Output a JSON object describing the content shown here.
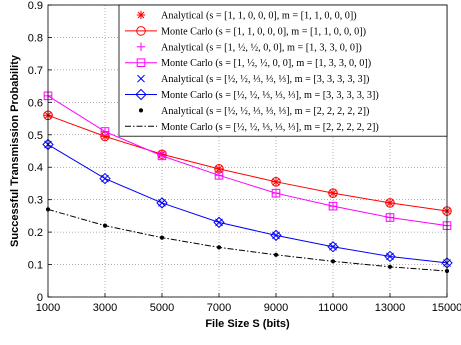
{
  "chart_data": {
    "type": "line",
    "xlabel": "File Size S (bits)",
    "ylabel": "Successful Transmission Probability",
    "x": [
      1000,
      3000,
      5000,
      7000,
      9000,
      11000,
      13000,
      15000
    ],
    "x_ticks": [
      "1000",
      "3000",
      "5000",
      "7000",
      "9000",
      "11000",
      "13000",
      "15000"
    ],
    "y_ticks": [
      "0",
      "0.1",
      "0.2",
      "0.3",
      "0.4",
      "0.5",
      "0.6",
      "0.7",
      "0.8",
      "0.9"
    ],
    "xlim": [
      1000,
      15000
    ],
    "ylim": [
      0,
      0.9
    ],
    "grid": true,
    "legend_position": "top-right",
    "series": [
      {
        "name": "Analytical (s = [1,1,0,0,0], m = [1,1,0,0,0])",
        "color": "#ff0000",
        "marker": "asterisk",
        "line": "none",
        "values": [
          0.56,
          0.495,
          0.44,
          0.395,
          0.355,
          0.32,
          0.29,
          0.265
        ]
      },
      {
        "name": "Monte Carlo (s = [1,1,0,0,0], m = [1,1,0,0,0])",
        "color": "#ff0000",
        "marker": "circle",
        "line": "solid",
        "values": [
          0.56,
          0.495,
          0.44,
          0.395,
          0.355,
          0.32,
          0.29,
          0.265
        ]
      },
      {
        "name": "Analytical (s = [1, 1/2, 1/2, 0, 0], m = [1,3,3,0,0])",
        "color": "#ff00ff",
        "marker": "plus",
        "line": "none",
        "values": [
          0.62,
          0.51,
          0.435,
          0.375,
          0.32,
          0.28,
          0.245,
          0.22
        ]
      },
      {
        "name": "Monte Carlo (s = [1, 1/2, 1/2, 0, 0], m = [1,3,3,0,0])",
        "color": "#ff00ff",
        "marker": "square",
        "line": "solid",
        "values": [
          0.62,
          0.51,
          0.435,
          0.375,
          0.32,
          0.28,
          0.245,
          0.22
        ]
      },
      {
        "name": "Analytical (s = [1/2, 1/2, 1/3, 1/3, 1/3], m = [3,3,3,3,3])",
        "color": "#0000ff",
        "marker": "x",
        "line": "none",
        "values": [
          0.47,
          0.365,
          0.29,
          0.23,
          0.19,
          0.155,
          0.125,
          0.105
        ]
      },
      {
        "name": "Monte Carlo (s = [1/2, 1/2, 1/3, 1/3, 1/3], m = [3,3,3,3,3])",
        "color": "#0000ff",
        "marker": "diamond",
        "line": "solid",
        "values": [
          0.47,
          0.365,
          0.29,
          0.23,
          0.19,
          0.155,
          0.125,
          0.105
        ]
      },
      {
        "name": "Analytical (s = [1/2, 1/2, 1/3, 1/3, 1/3], m = [2,2,2,2,2])",
        "color": "#000000",
        "marker": "dot",
        "line": "none",
        "values": [
          0.27,
          0.22,
          0.183,
          0.153,
          0.13,
          0.11,
          0.093,
          0.08
        ]
      },
      {
        "name": "Monte Carlo (s = [1/2, 1/2, 1/3, 1/3, 1/3], m = [2,2,2,2,2])",
        "color": "#000000",
        "marker": "none",
        "line": "dashdot",
        "values": [
          0.27,
          0.22,
          0.183,
          0.153,
          0.13,
          0.11,
          0.093,
          0.08
        ]
      }
    ],
    "legend": [
      {
        "label": "Analytical (s = [1, 1, 0, 0, 0], m = [1, 1, 0, 0, 0])"
      },
      {
        "label": "Monte Carlo (s = [1, 1, 0, 0, 0], m = [1, 1, 0, 0, 0])"
      },
      {
        "label": "Analytical (s = [1, ½, ½, 0, 0], m = [1, 3, 3, 0, 0])"
      },
      {
        "label": "Monte Carlo (s = [1, ½, ½, 0, 0], m = [1, 3, 3, 0, 0])"
      },
      {
        "label": "Analytical (s = [½, ½, ⅓, ⅓, ⅓], m = [3, 3, 3, 3, 3])"
      },
      {
        "label": "Monte Carlo (s = [½, ½, ⅓, ⅓, ⅓], m = [3, 3, 3, 3, 3])"
      },
      {
        "label": "Analytical (s = [½, ½, ⅓, ⅓, ⅓], m = [2, 2, 2, 2, 2])"
      },
      {
        "label": "Monte Carlo (s = [½, ½, ⅓, ⅓, ⅓], m = [2, 2, 2, 2, 2])"
      }
    ]
  }
}
